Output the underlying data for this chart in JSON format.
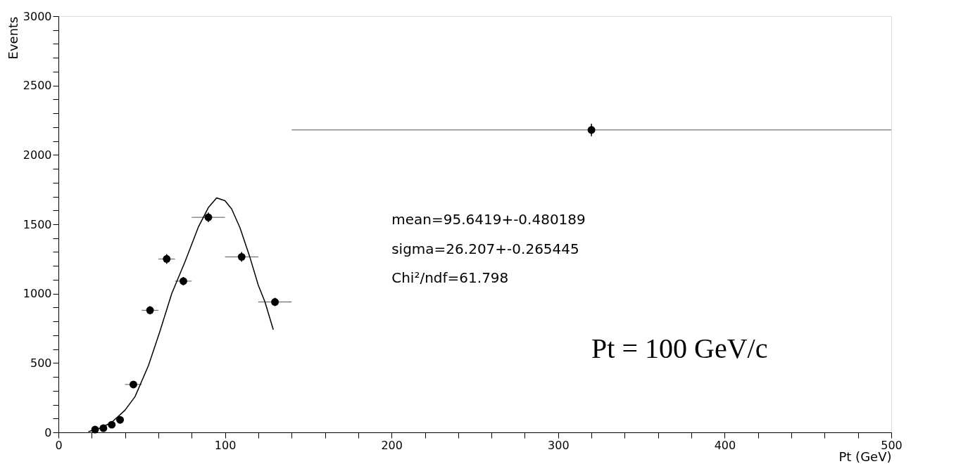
{
  "chart_data": {
    "type": "scatter",
    "xlabel": "Pt (GeV)",
    "ylabel": "Events",
    "xlim": [
      0,
      500
    ],
    "ylim": [
      0,
      3000
    ],
    "xticks": [
      0,
      {
        "value": 20,
        "label": null
      },
      {
        "value": 40,
        "label": null
      },
      {
        "value": 60,
        "label": null
      },
      {
        "value": 80,
        "label": null
      },
      100,
      {
        "value": 120,
        "label": null
      },
      {
        "value": 140,
        "label": null
      },
      {
        "value": 160,
        "label": null
      },
      {
        "value": 180,
        "label": null
      },
      200,
      {
        "value": 220,
        "label": null
      },
      {
        "value": 240,
        "label": null
      },
      {
        "value": 260,
        "label": null
      },
      {
        "value": 280,
        "label": null
      },
      300,
      {
        "value": 320,
        "label": null
      },
      {
        "value": 340,
        "label": null
      },
      {
        "value": 360,
        "label": null
      },
      {
        "value": 380,
        "label": null
      },
      400,
      {
        "value": 420,
        "label": null
      },
      {
        "value": 440,
        "label": null
      },
      {
        "value": 460,
        "label": null
      },
      {
        "value": 480,
        "label": null
      },
      500
    ],
    "yticks": [
      0,
      {
        "value": 100,
        "label": null
      },
      {
        "value": 200,
        "label": null
      },
      {
        "value": 300,
        "label": null
      },
      {
        "value": 400,
        "label": null
      },
      500,
      {
        "value": 600,
        "label": null
      },
      {
        "value": 700,
        "label": null
      },
      {
        "value": 800,
        "label": null
      },
      {
        "value": 900,
        "label": null
      },
      1000,
      {
        "value": 1100,
        "label": null
      },
      {
        "value": 1200,
        "label": null
      },
      {
        "value": 1300,
        "label": null
      },
      {
        "value": 1400,
        "label": null
      },
      1500,
      {
        "value": 1600,
        "label": null
      },
      {
        "value": 1700,
        "label": null
      },
      {
        "value": 1800,
        "label": null
      },
      {
        "value": 1900,
        "label": null
      },
      2000,
      {
        "value": 2100,
        "label": null
      },
      {
        "value": 2200,
        "label": null
      },
      {
        "value": 2300,
        "label": null
      },
      {
        "value": 2400,
        "label": null
      },
      2500,
      {
        "value": 2600,
        "label": null
      },
      {
        "value": 2700,
        "label": null
      },
      {
        "value": 2800,
        "label": null
      },
      {
        "value": 2900,
        "label": null
      },
      3000
    ],
    "grid": false,
    "series": [
      {
        "color": "#000000",
        "marker": "circle",
        "x": [
          22,
          27,
          32,
          37,
          45,
          55,
          65,
          75,
          90,
          110,
          130,
          320
        ],
        "values": [
          20,
          30,
          55,
          90,
          345,
          880,
          1250,
          1090,
          1550,
          1265,
          940,
          2180
        ],
        "errors": [
          null,
          null,
          null,
          null,
          null,
          30,
          35,
          30,
          35,
          35,
          30,
          45
        ],
        "xerrors": [
          null,
          null,
          null,
          null,
          5,
          5,
          5,
          5,
          10,
          10,
          10,
          [
            140,
            500
          ]
        ]
      },
      {
        "type": "line",
        "color": "#000000",
        "marker": "none",
        "line_style": "solid",
        "x": [
          18,
          25,
          32,
          40,
          46,
          54,
          61,
          68,
          76,
          84,
          90,
          95,
          100,
          104,
          109,
          115,
          120,
          124,
          129
        ],
        "values": [
          5,
          30,
          72,
          160,
          258,
          480,
          731,
          1000,
          1230,
          1480,
          1620,
          1690,
          1670,
          1610,
          1475,
          1260,
          1060,
          940,
          740
        ]
      }
    ],
    "annotations": [
      "mean=95.6419+-0.480189",
      "sigma=26.207+-0.265445",
      "Chi²/ndf=61.798",
      "Pt = 100 GeV/c"
    ]
  }
}
